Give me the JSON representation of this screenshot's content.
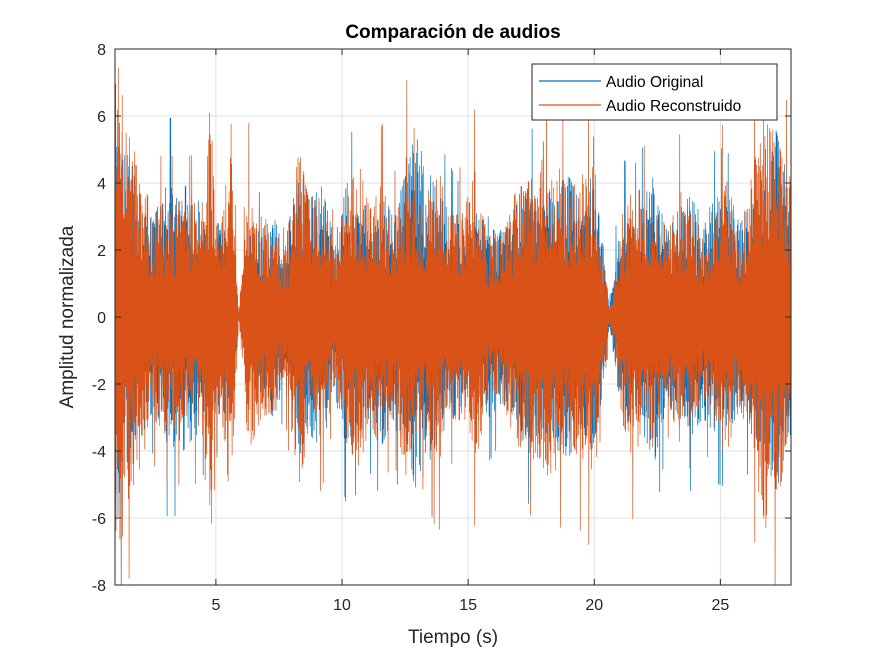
{
  "chart_data": {
    "type": "line",
    "title": "Comparación de audios",
    "xlabel": "Tiempo (s)",
    "ylabel": "Amplitud normalizada",
    "xlim": [
      1,
      27.8
    ],
    "ylim": [
      -8,
      8
    ],
    "xticks": [
      5,
      10,
      15,
      20,
      25
    ],
    "yticks": [
      -8,
      -6,
      -4,
      -2,
      0,
      2,
      4,
      6,
      8
    ],
    "grid": true,
    "legend_position": "top-right",
    "series": [
      {
        "name": "Audio Original",
        "color": "#0072BD",
        "x": [
          1.1,
          1.5,
          2.0,
          2.5,
          3.0,
          3.3,
          3.6,
          4.0,
          4.4,
          4.8,
          5.2,
          5.6,
          5.9,
          6.3,
          6.8,
          7.3,
          7.7,
          8.3,
          8.7,
          9.2,
          9.7,
          10.2,
          10.7,
          11.1,
          11.6,
          12.0,
          12.6,
          12.9,
          13.3,
          13.8,
          14.2,
          14.8,
          15.3,
          15.8,
          16.4,
          16.9,
          17.5,
          18.0,
          18.6,
          19.0,
          19.5,
          19.8,
          20.2,
          20.6,
          21.1,
          21.5,
          22.0,
          22.4,
          22.9,
          23.4,
          23.8,
          24.3,
          24.7,
          25.2,
          25.8,
          26.3,
          26.8,
          27.2,
          27.7
        ],
        "envelope": [
          6.0,
          5.0,
          3.6,
          2.8,
          4.1,
          4.1,
          4.1,
          3.7,
          3.4,
          2.8,
          2.8,
          3.0,
          0.2,
          2.4,
          2.6,
          3.0,
          2.0,
          4.5,
          3.5,
          3.9,
          2.3,
          4.0,
          3.5,
          3.2,
          3.8,
          3.0,
          4.4,
          5.5,
          4.6,
          3.7,
          3.2,
          2.6,
          3.1,
          3.0,
          2.5,
          3.6,
          3.9,
          3.6,
          4.0,
          4.2,
          3.3,
          4.3,
          3.0,
          0.3,
          3.3,
          3.0,
          3.6,
          4.3,
          2.5,
          3.3,
          3.6,
          3.0,
          3.4,
          3.5,
          2.8,
          3.6,
          3.8,
          5.6,
          4.1
        ]
      },
      {
        "name": "Audio Reconstruido",
        "color": "#D95319",
        "x": [
          1.1,
          1.5,
          2.0,
          2.5,
          3.0,
          3.3,
          3.6,
          4.0,
          4.4,
          4.8,
          5.2,
          5.6,
          5.9,
          6.3,
          6.8,
          7.3,
          7.7,
          8.3,
          8.7,
          9.2,
          9.7,
          10.2,
          10.7,
          11.1,
          11.6,
          12.0,
          12.6,
          12.9,
          13.3,
          13.8,
          14.2,
          14.8,
          15.3,
          15.8,
          16.4,
          16.9,
          17.5,
          18.0,
          18.6,
          19.0,
          19.5,
          19.8,
          20.2,
          20.6,
          21.1,
          21.5,
          22.0,
          22.4,
          22.9,
          23.4,
          23.8,
          24.3,
          24.7,
          25.2,
          25.8,
          26.3,
          26.8,
          27.2,
          27.7
        ],
        "envelope": [
          7.6,
          5.5,
          4.5,
          3.0,
          3.5,
          3.3,
          3.5,
          3.3,
          3.6,
          6.5,
          2.7,
          5.8,
          0.1,
          4.0,
          3.0,
          2.8,
          1.8,
          5.0,
          3.4,
          3.6,
          2.0,
          3.8,
          4.5,
          3.2,
          4.0,
          2.6,
          5.0,
          3.7,
          3.5,
          4.6,
          3.0,
          3.1,
          4.4,
          2.4,
          2.6,
          3.8,
          4.1,
          4.8,
          4.5,
          3.5,
          4.5,
          4.7,
          4.0,
          0.2,
          3.0,
          4.2,
          3.5,
          4.0,
          2.4,
          3.8,
          3.1,
          2.6,
          3.2,
          4.2,
          2.6,
          4.4,
          6.3,
          6.0,
          4.2
        ]
      }
    ]
  }
}
